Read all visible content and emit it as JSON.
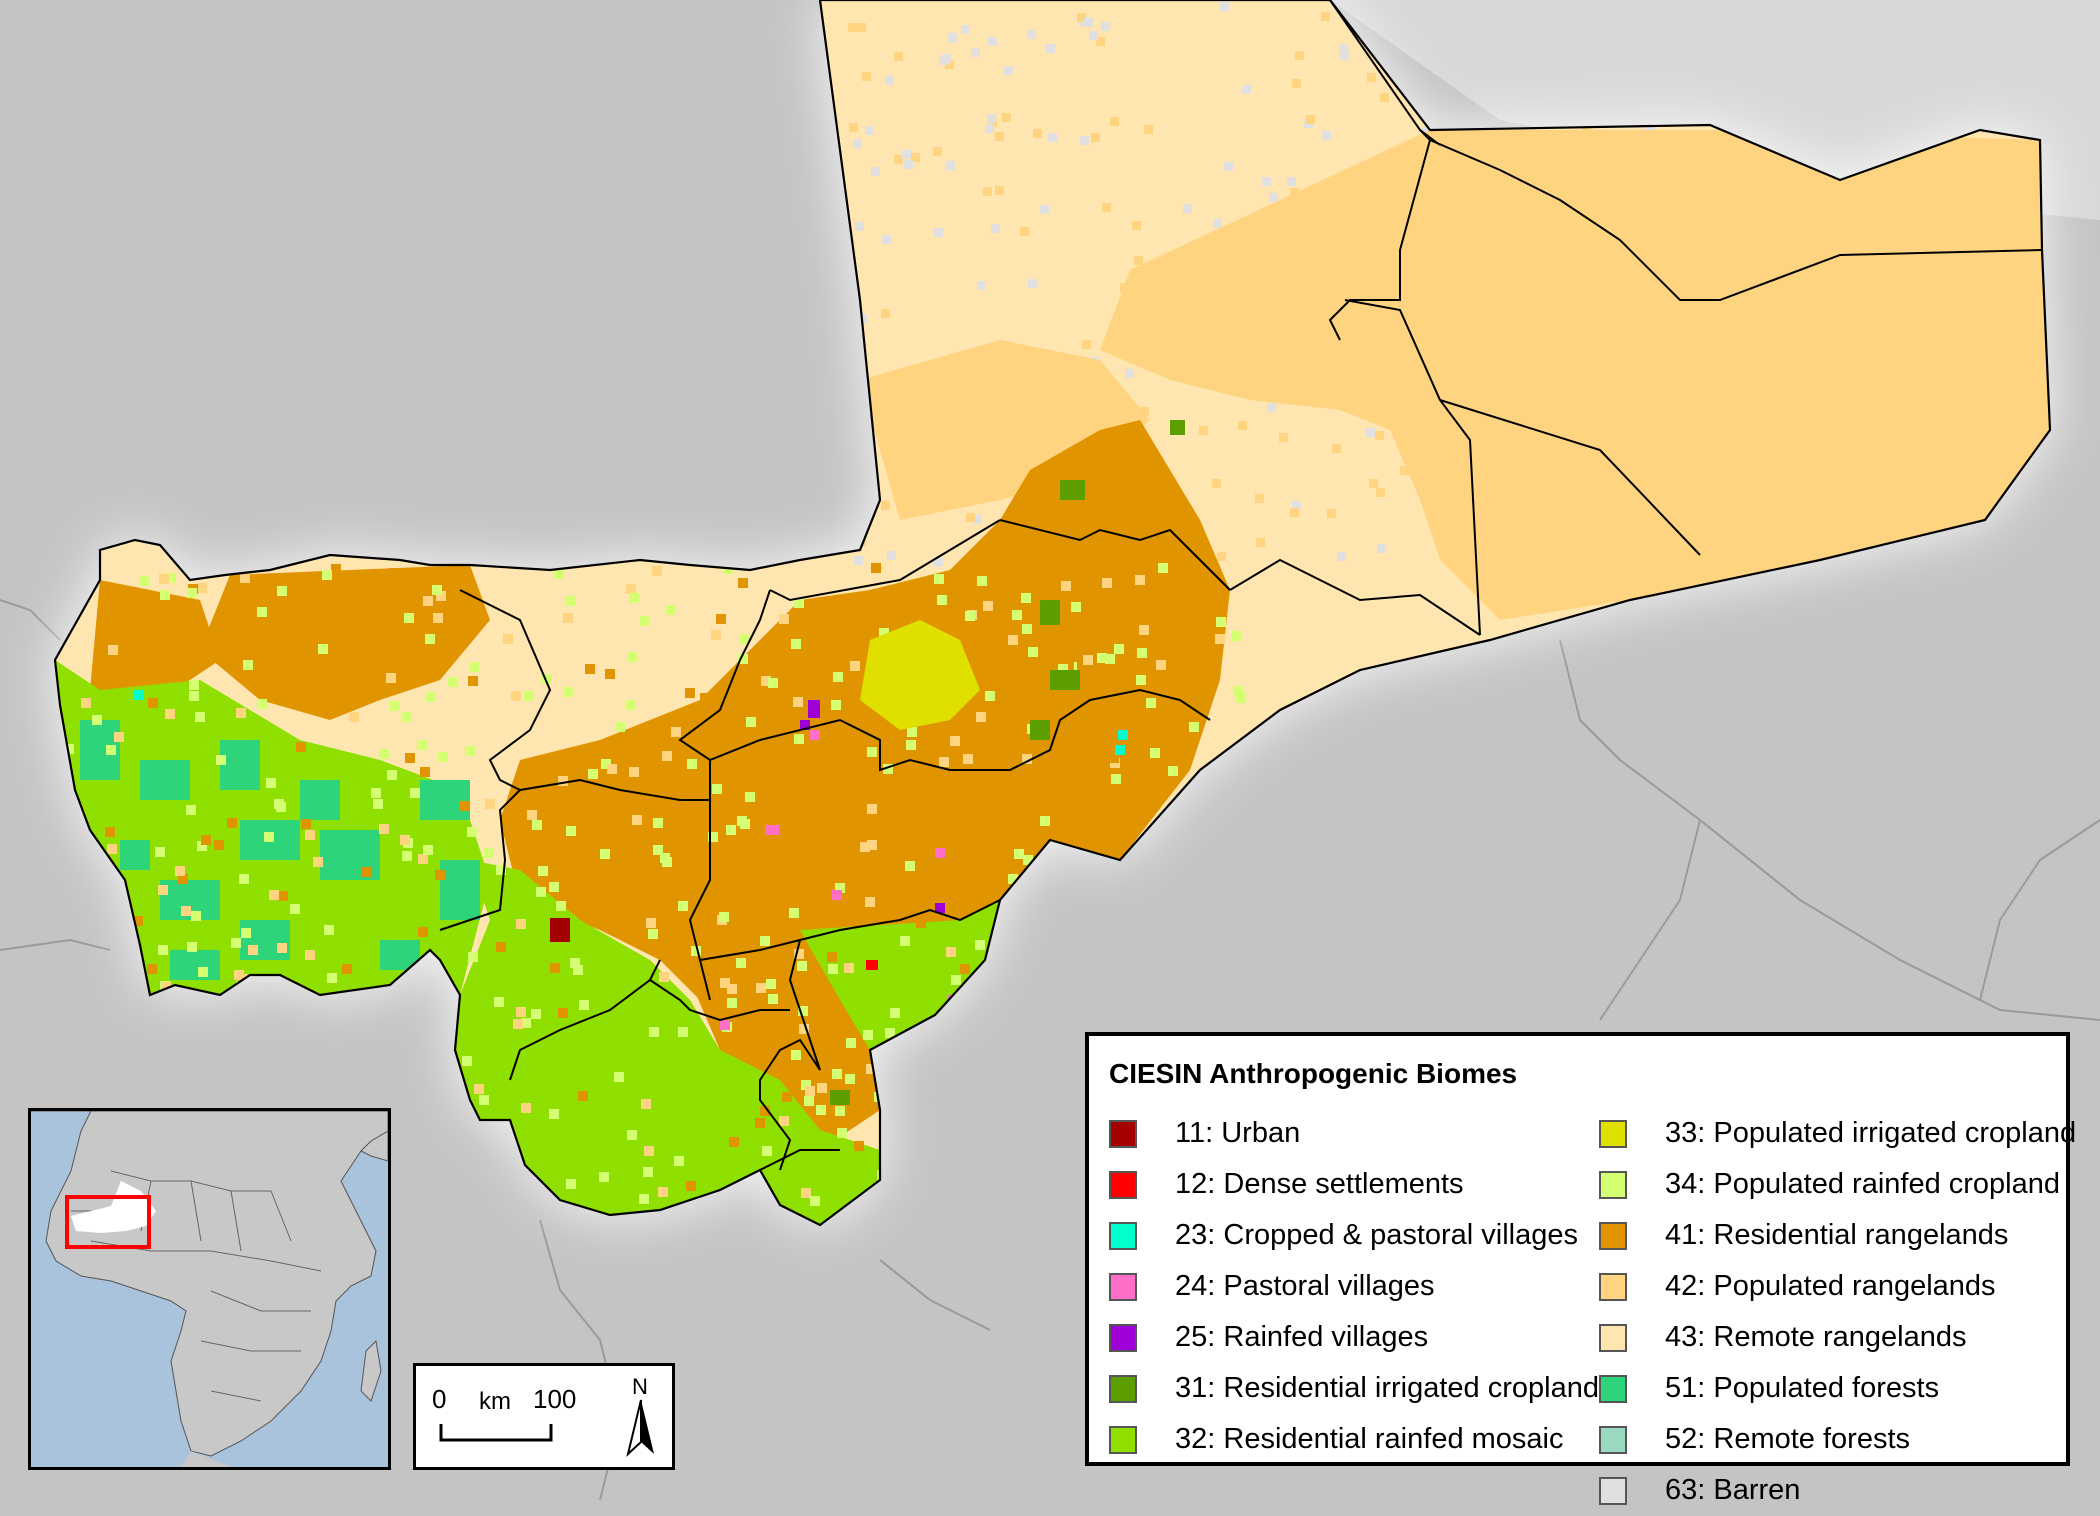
{
  "legend": {
    "title": "CIESIN Anthropogenic Biomes",
    "items_left": [
      {
        "label": "11: Urban",
        "color": "#a50000"
      },
      {
        "label": "12: Dense settlements",
        "color": "#ff0000"
      },
      {
        "label": "23: Cropped & pastoral villages",
        "color": "#00ffcc"
      },
      {
        "label": "24: Pastoral villages",
        "color": "#ff6ec7"
      },
      {
        "label": "25: Rainfed villages",
        "color": "#a000d8"
      },
      {
        "label": "31: Residential irrigated cropland",
        "color": "#5c9e00"
      },
      {
        "label": "32: Residential rainfed mosaic",
        "color": "#8fe000"
      }
    ],
    "items_right": [
      {
        "label": "33: Populated irrigated cropland",
        "color": "#e0e000"
      },
      {
        "label": "34: Populated rainfed cropland",
        "color": "#d4ff73"
      },
      {
        "label": "41: Residential rangelands",
        "color": "#e09400"
      },
      {
        "label": "42: Populated rangelands",
        "color": "#ffd480"
      },
      {
        "label": "43: Remote rangelands",
        "color": "#ffe6b0"
      },
      {
        "label": "51: Populated forests",
        "color": "#2ed47a"
      },
      {
        "label": "52: Remote forests",
        "color": "#99d9c0"
      },
      {
        "label": "63: Barren",
        "color": "#e0e0e0"
      }
    ]
  },
  "scalebar": {
    "start": "0",
    "unit": "km",
    "end": "100",
    "north": "N"
  },
  "colors": {
    "background_land": "#c4c4c4",
    "barren": "#e0e0e0",
    "remote_rangelands": "#ffe6b0",
    "populated_rangelands": "#ffd480",
    "residential_rangelands": "#e09400",
    "residential_rainfed_mosaic": "#8fe000",
    "populated_rainfed_cropland": "#d4ff73",
    "populated_forests": "#2ed47a",
    "populated_irrigated_cropland": "#e0e000",
    "residential_irrigated_cropland": "#5c9e00",
    "urban": "#a50000",
    "inset_ocean": "#a9c3dc",
    "inset_land": "#c8c8c8",
    "inset_highlight": "#ff0000"
  }
}
